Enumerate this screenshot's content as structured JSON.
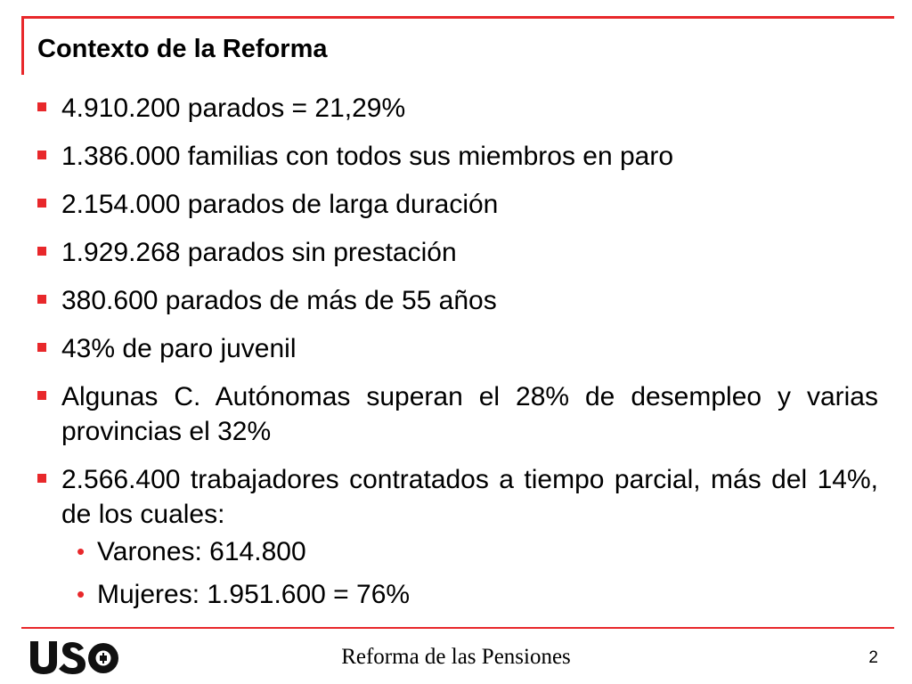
{
  "slide": {
    "title": "Contexto de la Reforma",
    "accent_color": "#e8282b",
    "bullets": [
      {
        "text": "4.910.200 parados = 21,29%"
      },
      {
        "text": "1.386.000 familias con todos sus miembros en paro"
      },
      {
        "text": "2.154.000 parados de larga duración"
      },
      {
        "text": "1.929.268 parados sin prestación"
      },
      {
        "text": "380.600 parados de más de 55 años"
      },
      {
        "text": "43% de paro juvenil"
      },
      {
        "text": "Algunas C. Autónomas superan el 28% de desempleo y varias provincias el 32%"
      },
      {
        "text": "2.566.400 trabajadores contratados a tiempo parcial, más del 14%, de los cuales:",
        "subitems": [
          {
            "text": "Varones: 614.800"
          },
          {
            "text": "Mujeres: 1.951.600 = 76%"
          }
        ]
      }
    ]
  },
  "footer": {
    "logo_text": "USO",
    "title": "Reforma de las Pensiones",
    "page_number": "2"
  }
}
